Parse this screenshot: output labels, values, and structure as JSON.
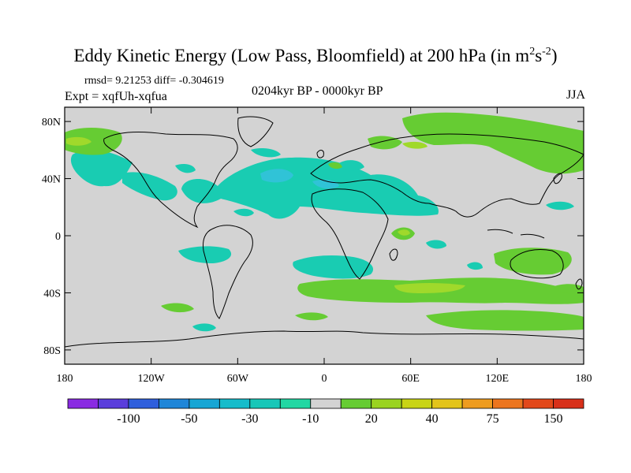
{
  "header": {
    "title_main": "Eddy Kinetic Energy (Low Pass, Bloomfield) at 200 hPa (in m",
    "title_sup1": "2",
    "title_s": "s",
    "title_sup2": "-2",
    "title_end": ")",
    "stats": "rmsd= 9.21253 diff= -0.304619",
    "experiment": "Expt = xqfUh-xqfua",
    "period": "0204kyr BP - 0000kyr BP",
    "season": "JJA"
  },
  "map": {
    "lat_labels": [
      "80N",
      "40N",
      "0",
      "40S",
      "80S"
    ],
    "lat_values": [
      80,
      40,
      0,
      -40,
      -80
    ],
    "lon_labels": [
      "180",
      "120W",
      "60W",
      "0",
      "60E",
      "120E",
      "180"
    ],
    "lon_values": [
      -180,
      -120,
      -60,
      0,
      60,
      120,
      180
    ],
    "lat_range": [
      -90,
      90
    ],
    "lon_range": [
      -180,
      180
    ],
    "background_color": "#d3d3d3",
    "positive_color": "#66cc33",
    "strong_positive_color": "#a0d92b",
    "negative_color": "#19ccb2",
    "strong_negative_color": "#30c3d7"
  },
  "colorbar": {
    "labels": [
      "-100",
      "-50",
      "-30",
      "-10",
      "20",
      "40",
      "75",
      "150"
    ],
    "colors": [
      "#8a2be2",
      "#5a3ddb",
      "#2f5fdc",
      "#1f86d8",
      "#17a6d4",
      "#16bccb",
      "#18c7b8",
      "#22d7a3",
      "#d3d3d3",
      "#66cc33",
      "#9ad320",
      "#c9d416",
      "#e3c41a",
      "#ee9c1f",
      "#ec751e",
      "#e2481a",
      "#d8301a"
    ]
  }
}
